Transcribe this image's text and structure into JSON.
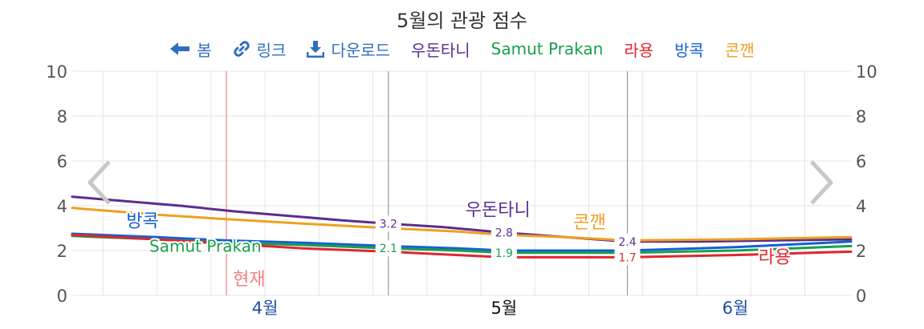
{
  "page": {
    "title": "5월의 관광 점수"
  },
  "toolbar": {
    "back": {
      "label": "봄",
      "icon": "arrow-left-icon"
    },
    "link": {
      "label": "링크",
      "icon": "link-icon"
    },
    "download": {
      "label": "다운로드",
      "icon": "download-icon"
    },
    "accent": "#2f6fbf"
  },
  "legend": [
    {
      "label": "우돈타니",
      "color": "#5b2d8e"
    },
    {
      "label": "Samut Prakan",
      "color": "#1a9e4b"
    },
    {
      "label": "라용",
      "color": "#e0262e"
    },
    {
      "label": "방콕",
      "color": "#1560d4"
    },
    {
      "label": "콘깬",
      "color": "#f0a020"
    }
  ],
  "navigation": {
    "prev_icon": "chevron-left-icon",
    "next_icon": "chevron-right-icon"
  },
  "chart_data": {
    "type": "line",
    "title": "5월의 관광 점수",
    "ylim": [
      0,
      10
    ],
    "yticks": [
      "0",
      "2",
      "4",
      "6",
      "8",
      "10"
    ],
    "x_range": [
      "2024-03-21",
      "2024-06-30"
    ],
    "month_labels": [
      {
        "label": "4월",
        "date": "2024-04-15",
        "color": "#1d4fa6"
      },
      {
        "label": "5월",
        "date": "2024-05-16",
        "color": "#111111"
      },
      {
        "label": "6월",
        "date": "2024-06-15",
        "color": "#1d4fa6"
      }
    ],
    "month_boundaries": [
      "2024-05-01",
      "2024-06-01"
    ],
    "current_marker": {
      "label": "현재",
      "date": "2024-04-10",
      "color": "#f08080"
    },
    "grid": true,
    "series": [
      {
        "name": "우돈타니",
        "color": "#5b2d8e",
        "segments": [
          [
            [
              "2024-03-21",
              4.4
            ],
            [
              "2024-03-28",
              4.2
            ],
            [
              "2024-04-04",
              4.0
            ],
            [
              "2024-04-11",
              3.75
            ],
            [
              "2024-04-18",
              3.55
            ],
            [
              "2024-04-25",
              3.35
            ],
            [
              "2024-05-01",
              3.2
            ]
          ],
          [
            [
              "2024-05-01",
              3.2
            ],
            [
              "2024-05-08",
              3.05
            ],
            [
              "2024-05-16",
              2.8
            ]
          ],
          [
            [
              "2024-05-16",
              2.8
            ],
            [
              "2024-05-24",
              2.6
            ],
            [
              "2024-06-01",
              2.4
            ]
          ],
          [
            [
              "2024-06-01",
              2.4
            ],
            [
              "2024-06-10",
              2.4
            ],
            [
              "2024-06-20",
              2.45
            ],
            [
              "2024-06-30",
              2.5
            ]
          ]
        ],
        "labels": [
          {
            "text": "3.2",
            "date": "2024-05-01",
            "value": 3.2
          },
          {
            "text": "2.8",
            "date": "2024-05-16",
            "value": 2.8
          },
          {
            "text": "2.4",
            "date": "2024-06-01",
            "value": 2.4
          }
        ],
        "series_label": {
          "text": "우돈타니",
          "date": "2024-05-11",
          "value": 3.55,
          "size": 22
        }
      },
      {
        "name": "Samut Prakan",
        "color": "#1a9e4b",
        "segments": [
          [
            [
              "2024-03-21",
              2.65
            ],
            [
              "2024-04-01",
              2.5
            ],
            [
              "2024-04-10",
              2.35
            ],
            [
              "2024-04-20",
              2.25
            ],
            [
              "2024-05-01",
              2.1
            ]
          ],
          [
            [
              "2024-05-01",
              2.1
            ],
            [
              "2024-05-10",
              2.0
            ],
            [
              "2024-05-16",
              1.9
            ]
          ],
          [
            [
              "2024-05-16",
              1.9
            ],
            [
              "2024-06-01",
              1.9
            ]
          ],
          [
            [
              "2024-06-01",
              1.9
            ],
            [
              "2024-06-15",
              2.0
            ],
            [
              "2024-06-30",
              2.2
            ]
          ]
        ],
        "labels": [
          {
            "text": "2.1",
            "date": "2024-05-01",
            "value": 2.1
          },
          {
            "text": "1.9",
            "date": "2024-05-16",
            "value": 1.9
          }
        ],
        "series_label": {
          "text": "Samut Prakan",
          "date": "2024-03-31",
          "value": 1.95,
          "size": 20
        }
      },
      {
        "name": "라용",
        "color": "#e0262e",
        "segments": [
          [
            [
              "2024-03-21",
              2.7
            ],
            [
              "2024-04-01",
              2.5
            ],
            [
              "2024-04-10",
              2.3
            ],
            [
              "2024-04-20",
              2.1
            ],
            [
              "2024-05-01",
              1.95
            ]
          ],
          [
            [
              "2024-05-01",
              1.95
            ],
            [
              "2024-05-10",
              1.8
            ],
            [
              "2024-05-16",
              1.7
            ]
          ],
          [
            [
              "2024-05-16",
              1.7
            ],
            [
              "2024-06-01",
              1.7
            ]
          ],
          [
            [
              "2024-06-01",
              1.7
            ],
            [
              "2024-06-15",
              1.8
            ],
            [
              "2024-06-30",
              1.95
            ]
          ]
        ],
        "labels": [
          {
            "text": "1.7",
            "date": "2024-06-01",
            "value": 1.7
          }
        ],
        "series_label": {
          "text": "라용",
          "date": "2024-06-18",
          "value": 1.45,
          "size": 22
        }
      },
      {
        "name": "방콕",
        "color": "#1560d4",
        "segments": [
          [
            [
              "2024-03-21",
              2.75
            ],
            [
              "2024-04-01",
              2.6
            ],
            [
              "2024-04-10",
              2.45
            ],
            [
              "2024-04-20",
              2.35
            ],
            [
              "2024-05-01",
              2.2
            ]
          ],
          [
            [
              "2024-05-01",
              2.2
            ],
            [
              "2024-05-10",
              2.1
            ],
            [
              "2024-05-16",
              2.0
            ]
          ],
          [
            [
              "2024-05-16",
              2.0
            ],
            [
              "2024-06-01",
              2.0
            ]
          ],
          [
            [
              "2024-06-01",
              2.0
            ],
            [
              "2024-06-15",
              2.15
            ],
            [
              "2024-06-30",
              2.4
            ]
          ]
        ],
        "labels": [],
        "series_label": {
          "text": "방콕",
          "date": "2024-03-28",
          "value": 3.05,
          "size": 22
        }
      },
      {
        "name": "콘깬",
        "color": "#f0a020",
        "segments": [
          [
            [
              "2024-03-21",
              3.9
            ],
            [
              "2024-04-01",
              3.6
            ],
            [
              "2024-04-10",
              3.4
            ],
            [
              "2024-04-20",
              3.2
            ],
            [
              "2024-05-01",
              3.0
            ]
          ],
          [
            [
              "2024-05-01",
              3.0
            ],
            [
              "2024-05-10",
              2.85
            ],
            [
              "2024-05-16",
              2.7
            ]
          ],
          [
            [
              "2024-05-16",
              2.7
            ],
            [
              "2024-05-24",
              2.6
            ],
            [
              "2024-06-01",
              2.45
            ]
          ],
          [
            [
              "2024-06-01",
              2.45
            ],
            [
              "2024-06-15",
              2.5
            ],
            [
              "2024-06-30",
              2.6
            ]
          ]
        ],
        "labels": [],
        "series_label": {
          "text": "콘깬",
          "date": "2024-05-25",
          "value": 3.0,
          "size": 22
        }
      }
    ]
  }
}
